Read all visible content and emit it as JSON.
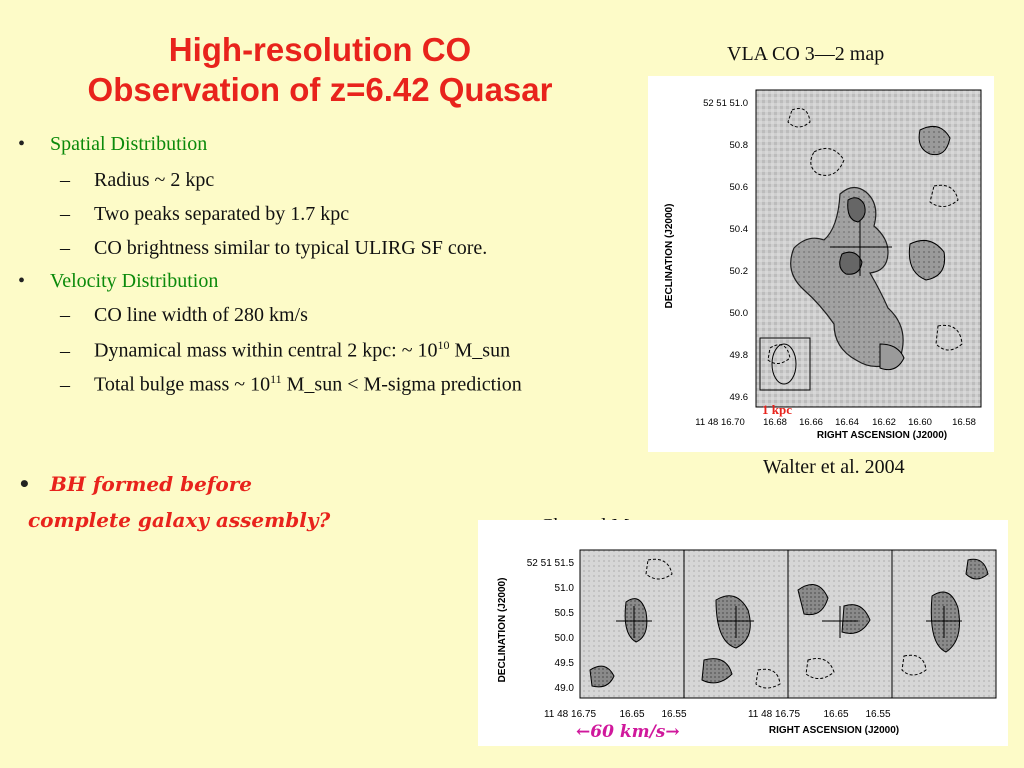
{
  "title": {
    "line1": "High-resolution CO",
    "line2": "Observation of z=6.42 Quasar"
  },
  "bullets": [
    {
      "label": "Spatial Distribution",
      "subs": [
        "Radius ~ 2 kpc",
        "Two peaks separated by 1.7 kpc",
        "CO brightness similar to typical ULIRG SF core."
      ]
    },
    {
      "label": "Velocity Distribution",
      "subs": [
        "CO line width of 280 km/s"
      ]
    }
  ],
  "mass_dyn": {
    "pre": "Dynamical mass within central 2 kpc: ~ 10",
    "exp": "10",
    "post": " M_sun"
  },
  "mass_bulge": {
    "pre": "Total bulge mass ~ 10",
    "exp": "11",
    "post": " M_sun < M-sigma prediction"
  },
  "emphasis": {
    "line1": "BH formed before",
    "line2": "complete galaxy assembly?"
  },
  "symbols": {
    "bullet": "•",
    "dash": "–"
  },
  "vla_map": {
    "caption": "VLA CO 3—2 map",
    "credit": "Walter et al. 2004",
    "y_axis_label": "DECLINATION (J2000)",
    "x_axis_label": "RIGHT ASCENSION (J2000)",
    "y_ticks": [
      "52 51 51.0",
      "50.8",
      "50.6",
      "50.4",
      "50.2",
      "50.0",
      "49.8",
      "49.6"
    ],
    "x_ticks": [
      "11 48 16.70",
      "16.68",
      "16.66",
      "16.64",
      "16.62",
      "16.60",
      "16.58"
    ],
    "scale_label": "1 kpc"
  },
  "channel_maps": {
    "caption": "Channel Maps",
    "y_axis_label": "DECLINATION (J2000)",
    "x_axis_label": "RIGHT ASCENSION (J2000)",
    "y_ticks": [
      "52 51 51.5",
      "51.0",
      "50.5",
      "50.0",
      "49.5",
      "49.0"
    ],
    "x_ticks_left": [
      "11 48 16.75",
      "16.65",
      "16.55"
    ],
    "x_ticks_right": [
      "11 48 16.75",
      "16.65",
      "16.55"
    ],
    "velocity_label": "60 km/s",
    "arrow_left": "←",
    "arrow_right": "→"
  },
  "colors": {
    "title": "#e8231c",
    "bullet_heading": "#0b8a0b",
    "background": "#fdfbc8",
    "velocity": "#d0189c"
  }
}
